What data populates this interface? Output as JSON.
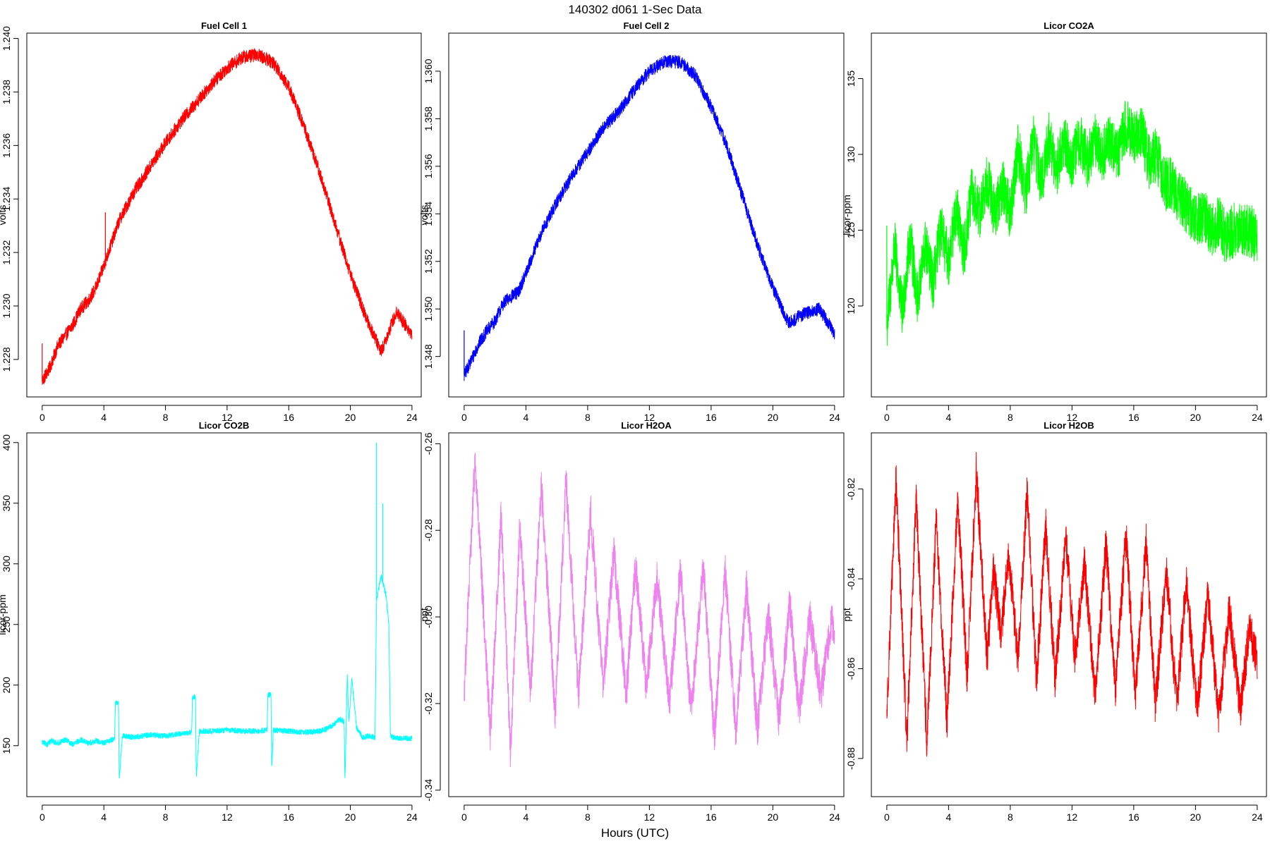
{
  "figure": {
    "title": "140302   d061   1-Sec Data",
    "xlabel": "Hours (UTC)"
  },
  "chart_data": [
    {
      "type": "line",
      "title": "Fuel Cell 1",
      "ylabel": "volts",
      "color": "#ff0000",
      "xlim": [
        -1,
        24.6
      ],
      "ylim": [
        1.2266,
        1.2402
      ],
      "xticks": [
        0,
        4,
        8,
        12,
        16,
        20,
        24
      ],
      "yticks": [
        1.228,
        1.23,
        1.232,
        1.234,
        1.236,
        1.238,
        1.24
      ],
      "ytick_labels": [
        "1.228",
        "1.230",
        "1.232",
        "1.234",
        "1.236",
        "1.238",
        "1.240"
      ],
      "noise": 0.00025,
      "spikes": [
        [
          0,
          1.2286
        ],
        [
          4.1,
          1.2335
        ]
      ],
      "x": [
        0,
        0.5,
        1,
        1.5,
        2,
        2.5,
        3,
        3.5,
        4,
        5,
        6,
        7,
        8,
        9,
        10,
        11,
        12,
        13,
        14,
        15,
        16,
        17,
        18,
        19,
        20,
        21,
        22,
        23,
        24
      ],
      "y": [
        1.2272,
        1.2277,
        1.2285,
        1.2289,
        1.2293,
        1.2299,
        1.2302,
        1.2307,
        1.2315,
        1.2332,
        1.2343,
        1.2352,
        1.2361,
        1.2369,
        1.2376,
        1.2383,
        1.2389,
        1.2393,
        1.2394,
        1.2391,
        1.2382,
        1.2367,
        1.235,
        1.2331,
        1.2312,
        1.2296,
        1.2283,
        1.2298,
        1.2289
      ]
    },
    {
      "type": "line",
      "title": "Fuel Cell 2",
      "ylabel": "volts",
      "color": "#0000ff",
      "xlim": [
        -1,
        24.6
      ],
      "ylim": [
        1.3463,
        1.3616
      ],
      "xticks": [
        0,
        4,
        8,
        12,
        16,
        20,
        24
      ],
      "yticks": [
        1.348,
        1.35,
        1.352,
        1.354,
        1.356,
        1.358,
        1.36
      ],
      "ytick_labels": [
        "1.348",
        "1.350",
        "1.352",
        "1.354",
        "1.356",
        "1.358",
        "1.360"
      ],
      "noise": 0.00028,
      "spikes": [
        [
          0,
          1.3491
        ]
      ],
      "x": [
        0,
        0.5,
        1,
        1.5,
        2,
        2.5,
        3,
        3.5,
        4,
        5,
        6,
        7,
        8,
        9,
        10,
        11,
        12,
        13,
        14,
        15,
        16,
        17,
        18,
        19,
        20,
        21,
        22,
        23,
        24
      ],
      "y": [
        1.3472,
        1.3479,
        1.3486,
        1.3491,
        1.3495,
        1.3502,
        1.3505,
        1.3507,
        1.3515,
        1.3532,
        1.3545,
        1.3556,
        1.3566,
        1.3576,
        1.3583,
        1.3592,
        1.36,
        1.3604,
        1.3604,
        1.3598,
        1.3585,
        1.3569,
        1.3548,
        1.3527,
        1.3509,
        1.3494,
        1.3498,
        1.35,
        1.349
      ]
    },
    {
      "type": "line",
      "title": "Licor CO2A",
      "ylabel": "licor-ppm",
      "color": "#00ff00",
      "xlim": [
        -1,
        24.6
      ],
      "ylim": [
        114,
        138
      ],
      "xticks": [
        0,
        4,
        8,
        12,
        16,
        20,
        24
      ],
      "yticks": [
        120,
        125,
        130,
        135
      ],
      "ytick_labels": [
        "120",
        "125",
        "130",
        "135"
      ],
      "noise": 1.8,
      "spikes": [
        [
          0,
          125.3
        ]
      ],
      "x": [
        0,
        0.5,
        1,
        1.5,
        2,
        2.5,
        3,
        3.5,
        4,
        4.5,
        5,
        5.5,
        6,
        6.5,
        7,
        7.5,
        8,
        8.5,
        9,
        9.5,
        10,
        10.5,
        11,
        11.5,
        12,
        12.5,
        13,
        13.5,
        14,
        14.5,
        15,
        15.5,
        16,
        16.5,
        17,
        17.5,
        18,
        18.5,
        19,
        19.5,
        20,
        20.5,
        21,
        21.5,
        22,
        22.5,
        23,
        23.5,
        24
      ],
      "y": [
        118.5,
        124.0,
        119.5,
        124.5,
        120.5,
        124.0,
        121.5,
        125.0,
        123.0,
        126.5,
        123.5,
        127.5,
        126.0,
        128.5,
        126.0,
        128.0,
        126.0,
        130.5,
        127.5,
        131.0,
        128.0,
        131.0,
        129.0,
        131.0,
        129.5,
        131.0,
        129.5,
        131.0,
        130.0,
        131.0,
        130.0,
        132.0,
        131.0,
        131.5,
        129.5,
        130.0,
        128.0,
        128.0,
        127.0,
        126.5,
        125.5,
        126.0,
        125.0,
        125.5,
        124.5,
        125.0,
        125.0,
        125.0,
        124.5
      ]
    },
    {
      "type": "line",
      "title": "Licor CO2B",
      "ylabel": "licor-ppm",
      "color": "#00ffff",
      "xlim": [
        -1,
        24.6
      ],
      "ylim": [
        108,
        408
      ],
      "xticks": [
        0,
        4,
        8,
        12,
        16,
        20,
        24
      ],
      "yticks": [
        150,
        200,
        250,
        300,
        350,
        400
      ],
      "ytick_labels": [
        "150",
        "200",
        "250",
        "300",
        "350",
        "400"
      ],
      "noise": 2.2,
      "spikes": [
        [
          21.7,
          400
        ],
        [
          22.1,
          350
        ]
      ],
      "x": [
        0,
        0.3,
        0.6,
        1,
        1.5,
        2,
        2.5,
        3,
        3.5,
        4,
        4.5,
        4.7,
        4.75,
        4.95,
        5,
        5.2,
        6,
        7,
        8,
        9,
        9.7,
        9.75,
        9.95,
        10,
        10.2,
        11,
        12,
        13,
        14,
        14.6,
        14.65,
        14.85,
        14.9,
        15,
        16,
        17,
        18,
        18.5,
        19,
        19.3,
        19.6,
        19.65,
        19.8,
        19.9,
        20.1,
        20.4,
        20.8,
        21.2,
        21.6,
        21.7,
        22,
        22.3,
        22.5,
        22.6,
        23,
        24
      ],
      "y": [
        153,
        151,
        154,
        152,
        155,
        151,
        155,
        152,
        154,
        152,
        155,
        156,
        185,
        185,
        122,
        158,
        157,
        159,
        158,
        160,
        161,
        190,
        190,
        125,
        162,
        162,
        163,
        162,
        162,
        163,
        192,
        192,
        130,
        163,
        162,
        161,
        162,
        164,
        168,
        172,
        170,
        120,
        210,
        170,
        205,
        165,
        157,
        158,
        157,
        270,
        290,
        275,
        250,
        158,
        156,
        156
      ]
    },
    {
      "type": "line",
      "title": "Licor H2OA",
      "ylabel": "ppt",
      "color": "#ee82ee",
      "xlim": [
        -1,
        24.6
      ],
      "ylim": [
        -0.3415,
        -0.2575
      ],
      "xticks": [
        0,
        4,
        8,
        12,
        16,
        20,
        24
      ],
      "yticks": [
        -0.34,
        -0.32,
        -0.3,
        -0.28,
        -0.26
      ],
      "ytick_labels": [
        "-0.34",
        "-0.32",
        "-0.30",
        "-0.28",
        "-0.26"
      ],
      "noise": 0.0045,
      "spikes": [],
      "x": [
        0,
        0.7,
        1.7,
        2.4,
        3.0,
        3.6,
        4.3,
        5.0,
        5.9,
        6.6,
        7.4,
        8.2,
        9.0,
        9.7,
        10.5,
        11.1,
        11.8,
        12.5,
        13.3,
        14.0,
        14.7,
        15.5,
        16.2,
        16.9,
        17.6,
        18.3,
        19.0,
        19.7,
        20.4,
        21.1,
        21.7,
        22.4,
        23.1,
        23.8,
        24
      ],
      "y": [
        -0.317,
        -0.264,
        -0.327,
        -0.276,
        -0.331,
        -0.279,
        -0.317,
        -0.27,
        -0.322,
        -0.268,
        -0.318,
        -0.276,
        -0.316,
        -0.285,
        -0.318,
        -0.288,
        -0.316,
        -0.291,
        -0.32,
        -0.289,
        -0.322,
        -0.288,
        -0.328,
        -0.289,
        -0.326,
        -0.293,
        -0.326,
        -0.299,
        -0.324,
        -0.297,
        -0.322,
        -0.3,
        -0.318,
        -0.301,
        -0.305
      ]
    },
    {
      "type": "line",
      "title": "Licor H2OB",
      "ylabel": "ppt",
      "color": "#ff0000",
      "xlim": [
        -1,
        24.6
      ],
      "ylim": [
        -0.8885,
        -0.8075
      ],
      "xticks": [
        0,
        4,
        8,
        12,
        16,
        20,
        24
      ],
      "yticks": [
        -0.88,
        -0.86,
        -0.84,
        -0.82
      ],
      "ytick_labels": [
        "-0.88",
        "-0.86",
        "-0.84",
        "-0.82"
      ],
      "noise": 0.0045,
      "spikes": [],
      "x": [
        0,
        0.6,
        1.3,
        1.9,
        2.6,
        3.2,
        3.9,
        4.6,
        5.2,
        5.8,
        6.5,
        6.9,
        7.4,
        7.9,
        8.5,
        9.1,
        9.7,
        10.3,
        10.9,
        11.6,
        12.2,
        12.8,
        13.5,
        14.2,
        14.8,
        15.5,
        16.1,
        16.8,
        17.4,
        18.1,
        18.8,
        19.4,
        20.1,
        20.8,
        21.5,
        22.2,
        22.9,
        23.5,
        24
      ],
      "y": [
        -0.87,
        -0.818,
        -0.876,
        -0.822,
        -0.877,
        -0.827,
        -0.872,
        -0.822,
        -0.862,
        -0.816,
        -0.858,
        -0.838,
        -0.852,
        -0.835,
        -0.858,
        -0.82,
        -0.863,
        -0.828,
        -0.862,
        -0.831,
        -0.858,
        -0.836,
        -0.866,
        -0.832,
        -0.865,
        -0.83,
        -0.866,
        -0.832,
        -0.868,
        -0.838,
        -0.868,
        -0.84,
        -0.869,
        -0.844,
        -0.87,
        -0.847,
        -0.869,
        -0.851,
        -0.858
      ]
    }
  ]
}
